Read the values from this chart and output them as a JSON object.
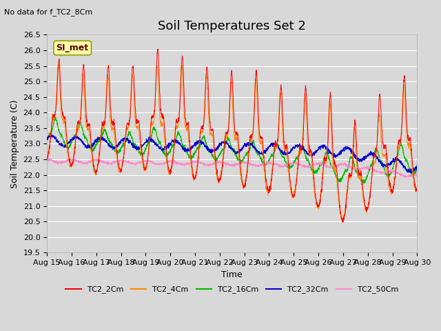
{
  "title": "Soil Temperatures Set 2",
  "ylabel": "Soil Temperature (C)",
  "xlabel": "Time",
  "upper_left_text": "No data for f_TC2_8Cm",
  "legend_box_text": "SI_met",
  "ylim": [
    19.5,
    26.5
  ],
  "yticks": [
    19.5,
    20.0,
    20.5,
    21.0,
    21.5,
    22.0,
    22.5,
    23.0,
    23.5,
    24.0,
    24.5,
    25.0,
    25.5,
    26.0,
    26.5
  ],
  "xtick_labels": [
    "Aug 15",
    "Aug 16",
    "Aug 17",
    "Aug 18",
    "Aug 19",
    "Aug 20",
    "Aug 21",
    "Aug 22",
    "Aug 23",
    "Aug 24",
    "Aug 25",
    "Aug 26",
    "Aug 27",
    "Aug 28",
    "Aug 29",
    "Aug 30"
  ],
  "colors": {
    "TC2_2Cm": "#ff0000",
    "TC2_4Cm": "#ff8800",
    "TC2_16Cm": "#00bb00",
    "TC2_32Cm": "#0000cc",
    "TC2_50Cm": "#ff88cc"
  },
  "background_color": "#d8d8d8",
  "plot_bg_color": "#d8d8d8",
  "grid_color": "#ffffff",
  "title_fontsize": 13,
  "axis_label_fontsize": 9,
  "tick_fontsize": 8
}
